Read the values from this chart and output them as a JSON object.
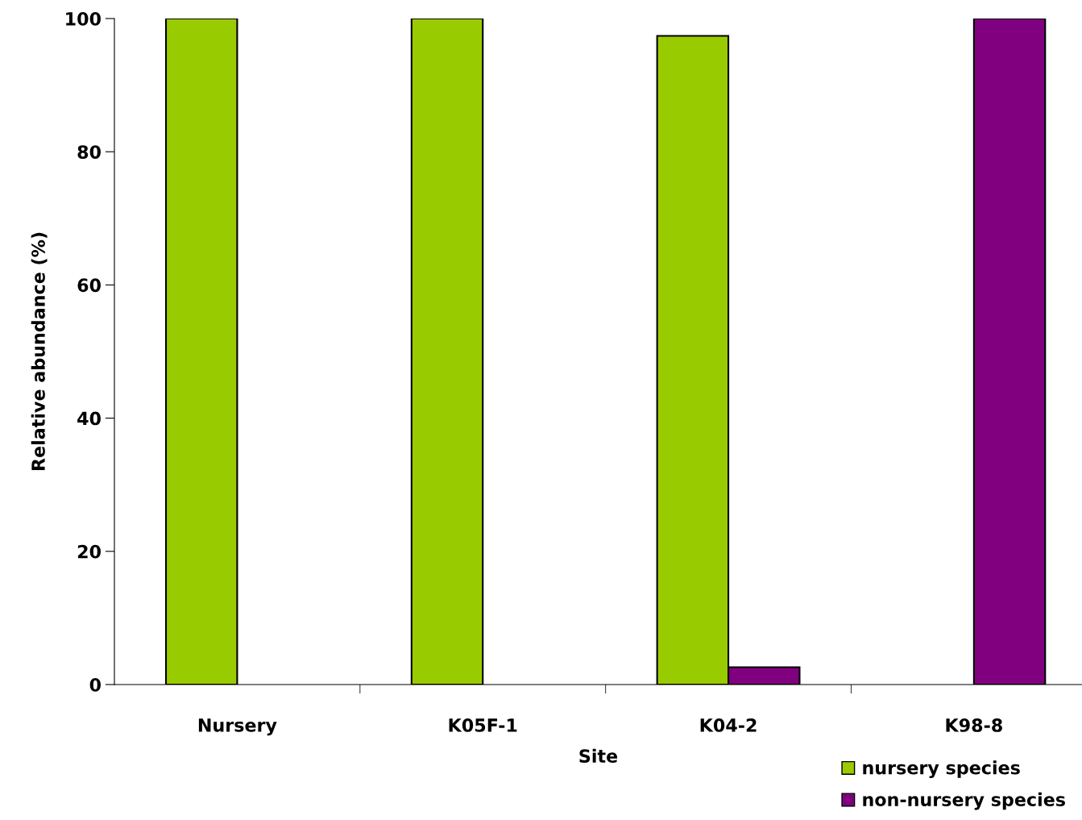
{
  "chart_data": {
    "type": "bar",
    "xlabel": "Site",
    "ylabel": "Relative abundance (%)",
    "categories": [
      "Nursery",
      "K05F-1",
      "K04-2",
      "K98-8"
    ],
    "series": [
      {
        "name": "nursery species",
        "color": "#99cc00",
        "values": [
          100,
          100,
          97.4,
          0
        ]
      },
      {
        "name": "non-nursery species",
        "color": "#800080",
        "values": [
          0,
          0,
          2.6,
          100
        ]
      }
    ],
    "ylim": [
      0,
      100
    ],
    "yticks": [
      0,
      20,
      40,
      60,
      80,
      100
    ],
    "grid": false,
    "legend": "bottom right"
  }
}
